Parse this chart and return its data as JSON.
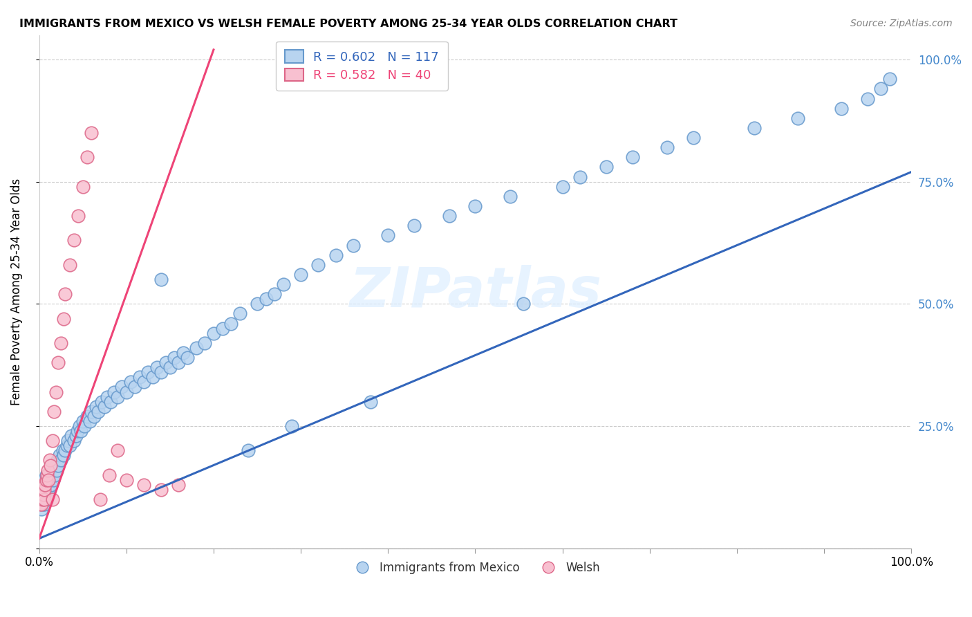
{
  "title": "IMMIGRANTS FROM MEXICO VS WELSH FEMALE POVERTY AMONG 25-34 YEAR OLDS CORRELATION CHART",
  "source": "Source: ZipAtlas.com",
  "ylabel": "Female Poverty Among 25-34 Year Olds",
  "legend_blue_label": "R = 0.602   N = 117",
  "legend_pink_label": "R = 0.582   N = 40",
  "bottom_legend_blue": "Immigrants from Mexico",
  "bottom_legend_pink": "Welsh",
  "blue_face_color": "#B8D4F0",
  "blue_edge_color": "#6699CC",
  "pink_face_color": "#F8C0D0",
  "pink_edge_color": "#DD6688",
  "blue_line_color": "#3366BB",
  "pink_line_color": "#EE4477",
  "watermark": "ZIPatlas",
  "background_color": "#FFFFFF",
  "right_tick_color": "#4488CC",
  "blue_scatter_x": [
    0.001,
    0.002,
    0.002,
    0.003,
    0.003,
    0.003,
    0.004,
    0.004,
    0.004,
    0.005,
    0.005,
    0.005,
    0.006,
    0.006,
    0.006,
    0.007,
    0.007,
    0.008,
    0.008,
    0.008,
    0.009,
    0.009,
    0.01,
    0.01,
    0.011,
    0.011,
    0.012,
    0.013,
    0.014,
    0.015,
    0.016,
    0.017,
    0.018,
    0.019,
    0.02,
    0.021,
    0.022,
    0.023,
    0.025,
    0.027,
    0.028,
    0.03,
    0.032,
    0.033,
    0.035,
    0.037,
    0.04,
    0.042,
    0.044,
    0.046,
    0.048,
    0.05,
    0.052,
    0.055,
    0.058,
    0.06,
    0.063,
    0.065,
    0.068,
    0.072,
    0.075,
    0.078,
    0.082,
    0.086,
    0.09,
    0.095,
    0.1,
    0.105,
    0.11,
    0.115,
    0.12,
    0.125,
    0.13,
    0.135,
    0.14,
    0.145,
    0.15,
    0.155,
    0.16,
    0.165,
    0.17,
    0.18,
    0.19,
    0.2,
    0.21,
    0.22,
    0.23,
    0.25,
    0.26,
    0.27,
    0.28,
    0.3,
    0.32,
    0.34,
    0.36,
    0.4,
    0.43,
    0.47,
    0.5,
    0.54,
    0.555,
    0.6,
    0.62,
    0.65,
    0.68,
    0.72,
    0.75,
    0.82,
    0.87,
    0.92,
    0.95,
    0.965,
    0.975,
    0.38,
    0.29,
    0.24,
    0.14
  ],
  "blue_scatter_y": [
    0.1,
    0.09,
    0.11,
    0.08,
    0.1,
    0.12,
    0.09,
    0.11,
    0.13,
    0.1,
    0.12,
    0.14,
    0.09,
    0.11,
    0.13,
    0.1,
    0.12,
    0.11,
    0.13,
    0.15,
    0.1,
    0.12,
    0.11,
    0.13,
    0.12,
    0.14,
    0.13,
    0.14,
    0.13,
    0.15,
    0.14,
    0.16,
    0.15,
    0.17,
    0.16,
    0.18,
    0.17,
    0.19,
    0.18,
    0.2,
    0.19,
    0.2,
    0.21,
    0.22,
    0.21,
    0.23,
    0.22,
    0.23,
    0.24,
    0.25,
    0.24,
    0.26,
    0.25,
    0.27,
    0.26,
    0.28,
    0.27,
    0.29,
    0.28,
    0.3,
    0.29,
    0.31,
    0.3,
    0.32,
    0.31,
    0.33,
    0.32,
    0.34,
    0.33,
    0.35,
    0.34,
    0.36,
    0.35,
    0.37,
    0.36,
    0.38,
    0.37,
    0.39,
    0.38,
    0.4,
    0.39,
    0.41,
    0.42,
    0.44,
    0.45,
    0.46,
    0.48,
    0.5,
    0.51,
    0.52,
    0.54,
    0.56,
    0.58,
    0.6,
    0.62,
    0.64,
    0.66,
    0.68,
    0.7,
    0.72,
    0.5,
    0.74,
    0.76,
    0.78,
    0.8,
    0.82,
    0.84,
    0.86,
    0.88,
    0.9,
    0.92,
    0.94,
    0.96,
    0.3,
    0.25,
    0.2,
    0.55
  ],
  "pink_scatter_x": [
    0.001,
    0.001,
    0.002,
    0.002,
    0.003,
    0.003,
    0.004,
    0.004,
    0.005,
    0.005,
    0.006,
    0.006,
    0.007,
    0.008,
    0.009,
    0.01,
    0.011,
    0.012,
    0.013,
    0.015,
    0.017,
    0.019,
    0.022,
    0.025,
    0.028,
    0.03,
    0.035,
    0.04,
    0.045,
    0.05,
    0.055,
    0.06,
    0.07,
    0.08,
    0.09,
    0.1,
    0.12,
    0.14,
    0.16,
    0.015
  ],
  "pink_scatter_y": [
    0.09,
    0.11,
    0.1,
    0.12,
    0.09,
    0.11,
    0.1,
    0.12,
    0.11,
    0.13,
    0.1,
    0.12,
    0.13,
    0.14,
    0.15,
    0.16,
    0.14,
    0.18,
    0.17,
    0.22,
    0.28,
    0.32,
    0.38,
    0.42,
    0.47,
    0.52,
    0.58,
    0.63,
    0.68,
    0.74,
    0.8,
    0.85,
    0.1,
    0.15,
    0.2,
    0.14,
    0.13,
    0.12,
    0.13,
    0.1
  ],
  "blue_line_x0": 0.0,
  "blue_line_y0": 0.02,
  "blue_line_x1": 1.0,
  "blue_line_y1": 0.77,
  "pink_line_x0": 0.0,
  "pink_line_y0": 0.02,
  "pink_line_x1": 0.2,
  "pink_line_y1": 1.02,
  "xlim": [
    0,
    1
  ],
  "ylim": [
    0,
    1.05
  ],
  "x_ticks": [
    0,
    0.1,
    0.2,
    0.3,
    0.4,
    0.5,
    0.6,
    0.7,
    0.8,
    0.9,
    1.0
  ],
  "x_tick_labels": [
    "0.0%",
    "",
    "",
    "",
    "",
    "",
    "",
    "",
    "",
    "",
    "100.0%"
  ],
  "y_ticks": [
    0.0,
    0.25,
    0.5,
    0.75,
    1.0
  ],
  "y_tick_labels_right": [
    "",
    "25.0%",
    "50.0%",
    "75.0%",
    "100.0%"
  ]
}
